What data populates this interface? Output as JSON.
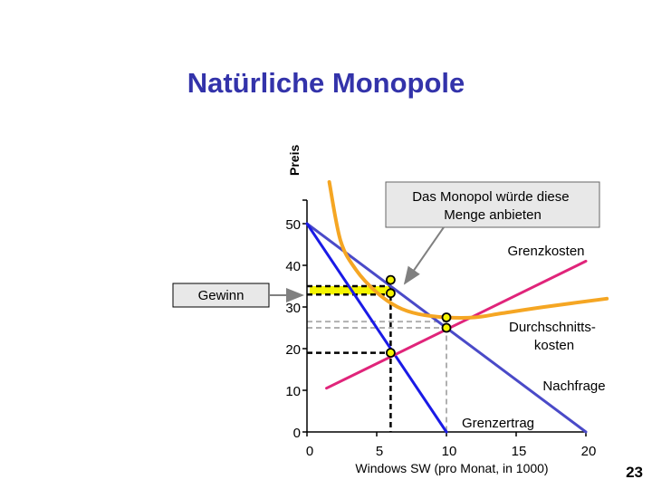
{
  "title": "Natürliche Monopole",
  "page_number": "23",
  "colors": {
    "title": "#3333aa",
    "demand": "#4a4ac8",
    "marginal_revenue": "#1a1ae6",
    "marginal_cost": "#e0247a",
    "average_cost": "#f5a623",
    "profit_area": "#f5f500"
  },
  "chart_data": {
    "type": "line",
    "xlabel": "Windows SW (pro Monat, in 1000)",
    "ylabel": "Preis",
    "xlim": [
      0,
      20
    ],
    "ylim": [
      0,
      50
    ],
    "x_ticks": [
      "0",
      "5",
      "10",
      "15",
      "20"
    ],
    "y_ticks": [
      "0",
      "10",
      "20",
      "30",
      "40",
      "50"
    ],
    "series": [
      {
        "name": "Nachfrage",
        "points": [
          [
            0,
            50
          ],
          [
            20,
            0
          ]
        ]
      },
      {
        "name": "Grenzertrag",
        "points": [
          [
            0,
            50
          ],
          [
            10,
            0
          ]
        ]
      },
      {
        "name": "Grenzkosten",
        "points": [
          [
            1.4,
            10.5
          ],
          [
            20,
            41
          ]
        ]
      },
      {
        "name": "Durchschnitts-kosten",
        "points": [
          [
            1.6,
            60
          ],
          [
            2.4,
            46
          ],
          [
            3.5,
            39
          ],
          [
            5,
            33.5
          ],
          [
            6.5,
            30
          ],
          [
            8,
            28.3
          ],
          [
            10,
            27.5
          ],
          [
            12,
            27.5
          ],
          [
            14,
            28.5
          ],
          [
            17,
            30
          ],
          [
            21.5,
            32
          ]
        ]
      }
    ],
    "key_points": {
      "monopoly_quantity": 6,
      "monopoly_price": 35,
      "average_cost_at_monopoly": 33,
      "mr_equals_mc_price": 19,
      "efficient_quantity": 10,
      "average_cost_minimum": 27.5,
      "marginal_cost_at_efficient": 25
    },
    "annotations": {
      "monopol_callout": "Das Monopol würde diese Menge anbieten",
      "profit_label": "Gewinn"
    }
  }
}
